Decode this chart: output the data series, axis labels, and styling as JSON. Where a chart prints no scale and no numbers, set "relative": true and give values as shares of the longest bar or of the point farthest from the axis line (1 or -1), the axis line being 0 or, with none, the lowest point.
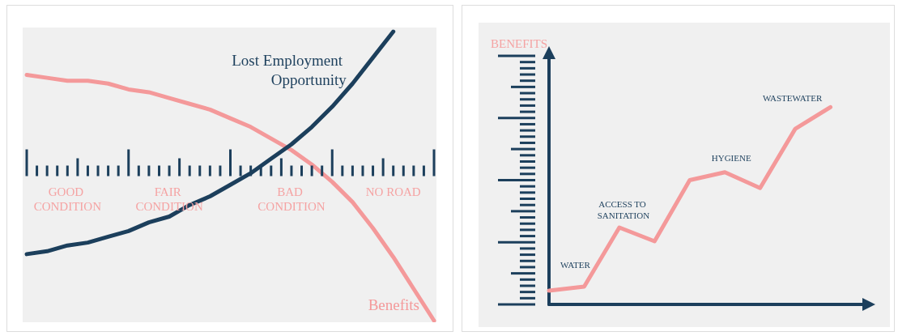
{
  "chart_data": [
    {
      "type": "line",
      "relative": true,
      "marker": "none",
      "tick_labels": "x",
      "categories": [
        null,
        null,
        "GOOD CONDITION",
        null,
        null,
        null,
        null,
        "FAIR CONDITION",
        null,
        null,
        null,
        null,
        null,
        "BAD CONDITION",
        null,
        null,
        null,
        null,
        "NO ROAD",
        null,
        null
      ],
      "series": [
        {
          "name": "Benefits",
          "color": "#f4999a",
          "values": [
            0.85,
            0.84,
            0.83,
            0.83,
            0.82,
            0.8,
            0.79,
            0.77,
            0.75,
            0.73,
            0.7,
            0.67,
            0.63,
            0.59,
            0.54,
            0.48,
            0.41,
            0.32,
            0.22,
            0.11,
            0
          ]
        },
        {
          "name": "Lost Employment Opportunity",
          "color": "#1c3f5c",
          "values": [
            0.23,
            0.24,
            0.26,
            0.27,
            0.29,
            0.31,
            0.34,
            0.36,
            0.4,
            0.43,
            0.47,
            0.51,
            0.56,
            0.61,
            0.67,
            0.74,
            0.82,
            0.91,
            1.0,
            null,
            null
          ]
        }
      ]
    },
    {
      "type": "line",
      "relative": true,
      "marker": "none",
      "tick_labels": false,
      "ylabel": "BENEFITS",
      "categories": [
        null,
        null,
        null,
        null,
        null,
        null,
        null,
        null,
        null,
        null
      ],
      "annotations": [
        "WATER",
        "ACCESS TO SANITATION",
        "HYGIENE",
        "WASTEWATER"
      ],
      "series": [
        {
          "color": "#f4999a",
          "values": [
            0.07,
            0.09,
            0.39,
            0.32,
            0.63,
            0.67,
            0.59,
            0.89,
            1.0,
            null
          ]
        }
      ]
    }
  ]
}
